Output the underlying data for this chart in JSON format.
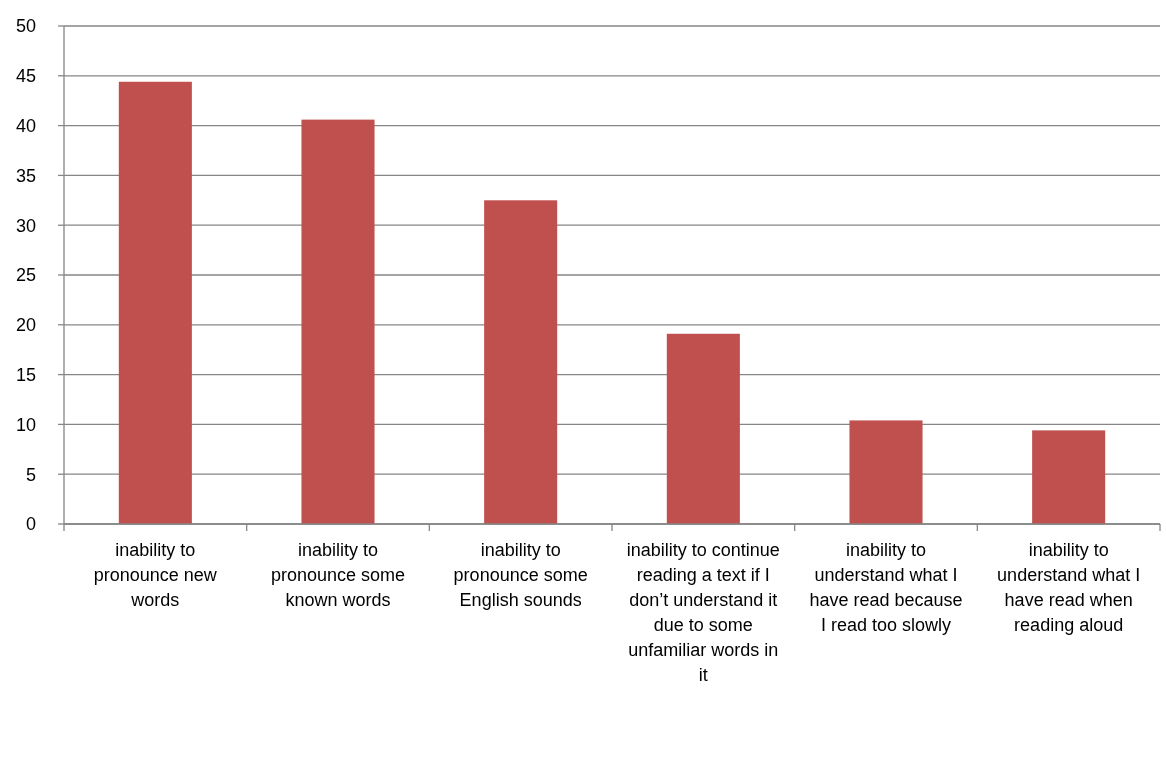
{
  "chart_data": {
    "type": "bar",
    "categories": [
      "inability to pronounce new words",
      "inability to pronounce some known words",
      "inability to pronounce some English sounds",
      "inability to continue reading a text if I don’t understand it due to some unfamiliar words in it",
      "inability to understand what I have read because I read too slowly",
      "inability to understand what I have read when reading aloud"
    ],
    "values": [
      44.4,
      40.6,
      32.5,
      19.1,
      10.4,
      9.4
    ],
    "color": "#c0504d",
    "ylim": [
      0,
      50
    ],
    "yticks": [
      0,
      5,
      10,
      15,
      20,
      25,
      30,
      35,
      40,
      45,
      50
    ],
    "grid": "y"
  }
}
